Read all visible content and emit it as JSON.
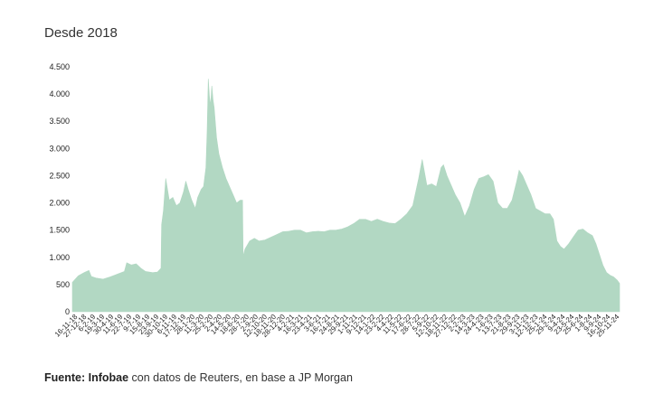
{
  "chart_data": {
    "type": "area",
    "title": "Desde 2018",
    "xlabel": "",
    "ylabel": "",
    "ylim": [
      0,
      4500
    ],
    "yticks": [
      0,
      500,
      1000,
      1500,
      2000,
      2500,
      3000,
      3500,
      4000,
      4500
    ],
    "ytick_labels": [
      "0",
      "500",
      "1.000",
      "1.500",
      "2.000",
      "2.500",
      "3.000",
      "3.500",
      "4.000",
      "4.500"
    ],
    "grid": false,
    "legend": "none",
    "color": "#b2d8c3",
    "x_tick_labels": [
      "16-11-18",
      "27-12-18",
      "6-2-19",
      "19-3-19",
      "30-4-19",
      "11-6-19",
      "22-7-19",
      "9-7-19",
      "15-8-19",
      "23-9-19",
      "30-10-19",
      "6-11-19",
      "17-12-19",
      "28-1-20",
      "11-3-20",
      "25-2-20",
      "2-4-20",
      "14-5-20",
      "18-6-20",
      "28-7-20",
      "2-9-20",
      "12-10-20",
      "18-11-20",
      "28-12-20",
      "4-2-21",
      "16-3-21",
      "23-4-21",
      "3-6-21",
      "16-7-21",
      "24-8-21",
      "29-9-21",
      "1-11-21",
      "9-12-21",
      "14-1-22",
      "23-2-22",
      "4-4-22",
      "11-5-22",
      "17-6-22",
      "28-7-22",
      "5-9-22",
      "12-10-22",
      "18-11-22",
      "27-12-22",
      "2-2-23",
      "14-3-23",
      "24-4-23",
      "1-6-23",
      "13-7-23",
      "21-8-23",
      "29-9-23",
      "3-11-23",
      "12-12-23",
      "25-1-24",
      "29-2-24",
      "9-4-24",
      "23-5-24",
      "25-6-24",
      "1-8-24",
      "9-9-24",
      "16-10-24",
      "25-11-24"
    ],
    "series": [
      {
        "values": [
          [
            0,
            540
          ],
          [
            5,
            660
          ],
          [
            10,
            720
          ],
          [
            14,
            760
          ],
          [
            16,
            650
          ],
          [
            20,
            620
          ],
          [
            26,
            600
          ],
          [
            32,
            640
          ],
          [
            38,
            690
          ],
          [
            44,
            740
          ],
          [
            46,
            900
          ],
          [
            50,
            860
          ],
          [
            54,
            880
          ],
          [
            58,
            800
          ],
          [
            62,
            740
          ],
          [
            68,
            720
          ],
          [
            72,
            730
          ],
          [
            75,
            800
          ],
          [
            75.5,
            1600
          ],
          [
            77,
            1850
          ],
          [
            79,
            2450
          ],
          [
            82,
            2050
          ],
          [
            85,
            2100
          ],
          [
            88,
            1950
          ],
          [
            91,
            2000
          ],
          [
            94,
            2200
          ],
          [
            96,
            2400
          ],
          [
            98,
            2250
          ],
          [
            101,
            2050
          ],
          [
            104,
            1900
          ],
          [
            106,
            2100
          ],
          [
            109,
            2250
          ],
          [
            111,
            2300
          ],
          [
            113,
            2650
          ],
          [
            114,
            3300
          ],
          [
            115,
            4280
          ],
          [
            116,
            3950
          ],
          [
            117,
            3800
          ],
          [
            118,
            4150
          ],
          [
            119,
            3900
          ],
          [
            120,
            3750
          ],
          [
            122,
            3200
          ],
          [
            124,
            2900
          ],
          [
            127,
            2650
          ],
          [
            130,
            2450
          ],
          [
            133,
            2300
          ],
          [
            136,
            2150
          ],
          [
            139,
            2000
          ],
          [
            142,
            2050
          ],
          [
            144,
            2050
          ],
          [
            144.5,
            1020
          ],
          [
            146,
            1150
          ],
          [
            150,
            1300
          ],
          [
            154,
            1350
          ],
          [
            158,
            1300
          ],
          [
            163,
            1320
          ],
          [
            168,
            1370
          ],
          [
            173,
            1420
          ],
          [
            178,
            1470
          ],
          [
            183,
            1480
          ],
          [
            188,
            1500
          ],
          [
            193,
            1500
          ],
          [
            198,
            1450
          ],
          [
            203,
            1470
          ],
          [
            208,
            1480
          ],
          [
            213,
            1470
          ],
          [
            218,
            1500
          ],
          [
            223,
            1500
          ],
          [
            228,
            1520
          ],
          [
            233,
            1560
          ],
          [
            238,
            1620
          ],
          [
            243,
            1700
          ],
          [
            248,
            1700
          ],
          [
            253,
            1660
          ],
          [
            258,
            1700
          ],
          [
            263,
            1660
          ],
          [
            268,
            1630
          ],
          [
            273,
            1620
          ],
          [
            278,
            1700
          ],
          [
            283,
            1800
          ],
          [
            288,
            1950
          ],
          [
            293,
            2450
          ],
          [
            296,
            2800
          ],
          [
            300,
            2320
          ],
          [
            304,
            2350
          ],
          [
            308,
            2300
          ],
          [
            312,
            2650
          ],
          [
            314,
            2700
          ],
          [
            317,
            2500
          ],
          [
            320,
            2350
          ],
          [
            324,
            2150
          ],
          [
            328,
            2000
          ],
          [
            332,
            1750
          ],
          [
            336,
            1950
          ],
          [
            340,
            2250
          ],
          [
            344,
            2450
          ],
          [
            348,
            2480
          ],
          [
            352,
            2520
          ],
          [
            356,
            2400
          ],
          [
            360,
            2000
          ],
          [
            364,
            1900
          ],
          [
            368,
            1900
          ],
          [
            372,
            2050
          ],
          [
            376,
            2400
          ],
          [
            378,
            2600
          ],
          [
            381,
            2500
          ],
          [
            384,
            2350
          ],
          [
            388,
            2150
          ],
          [
            392,
            1900
          ],
          [
            396,
            1850
          ],
          [
            400,
            1800
          ],
          [
            404,
            1800
          ],
          [
            407,
            1700
          ],
          [
            410,
            1300
          ],
          [
            413,
            1200
          ],
          [
            416,
            1150
          ],
          [
            420,
            1250
          ],
          [
            424,
            1380
          ],
          [
            428,
            1500
          ],
          [
            432,
            1520
          ],
          [
            436,
            1450
          ],
          [
            440,
            1400
          ],
          [
            443,
            1250
          ],
          [
            446,
            1050
          ],
          [
            449,
            850
          ],
          [
            452,
            720
          ],
          [
            455,
            670
          ],
          [
            458,
            640
          ],
          [
            461,
            580
          ],
          [
            463,
            520
          ]
        ]
      }
    ]
  },
  "footer": {
    "source_label": "Fuente:",
    "source_name": "Infobae",
    "source_text": " con datos de Reuters, en base a JP Morgan"
  }
}
